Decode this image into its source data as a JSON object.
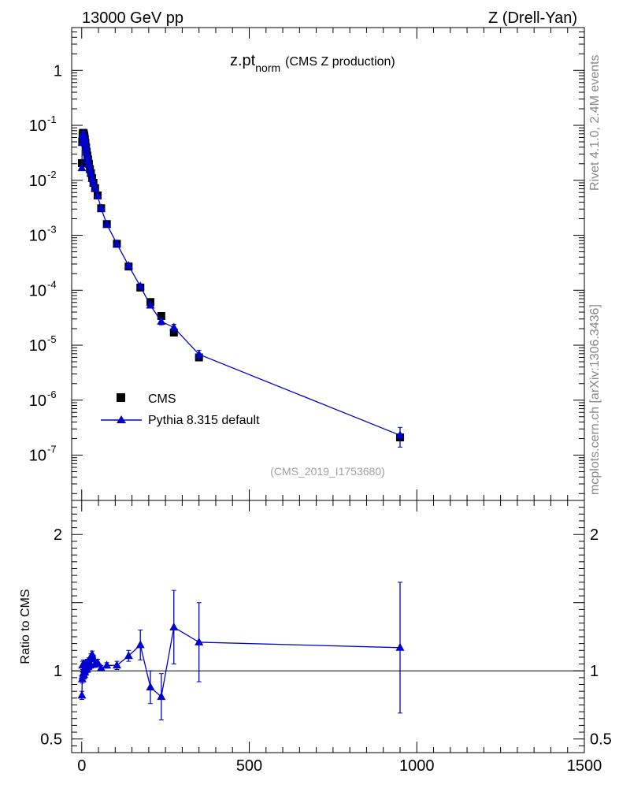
{
  "header": {
    "left_title": "13000 GeV pp",
    "right_title": "Z (Drell-Yan)"
  },
  "side_labels": {
    "rivet": "Rivet 4.1.0,  2.4M events",
    "mcplots": "mcplots.cern.ch [arXiv:1306.3436]"
  },
  "colors": {
    "data": "#000000",
    "mc": "#0000cc",
    "axis": "#000000",
    "watermark": "#a0a0a0"
  },
  "chart_data": [
    {
      "type": "scatter",
      "panel": "main",
      "title": "z.pt",
      "title_subscript": "norm",
      "subtitle": "(CMS Z production)",
      "watermark": "(CMS_2019_I1753680)",
      "xlim": [
        -30,
        1500
      ],
      "yscale": "log",
      "ylim": [
        1.5e-08,
        6
      ],
      "ytick_labels": [
        "10",
        "1"
      ],
      "ytick_decades": [
        0,
        -1,
        -2,
        -3,
        -4,
        -5,
        -6,
        -7
      ],
      "legend_position": "lower-left",
      "series": [
        {
          "name": "CMS",
          "marker": "square",
          "points": [
            {
              "x": 0.5,
              "y": 0.0205
            },
            {
              "x": 1.5,
              "y": 0.051
            },
            {
              "x": 2.5,
              "y": 0.066
            },
            {
              "x": 3.5,
              "y": 0.072
            },
            {
              "x": 4.5,
              "y": 0.073
            },
            {
              "x": 5.5,
              "y": 0.072
            },
            {
              "x": 6.5,
              "y": 0.069
            },
            {
              "x": 7.5,
              "y": 0.065
            },
            {
              "x": 8.5,
              "y": 0.06
            },
            {
              "x": 9.5,
              "y": 0.055
            },
            {
              "x": 11,
              "y": 0.048
            },
            {
              "x": 13,
              "y": 0.04
            },
            {
              "x": 15,
              "y": 0.033
            },
            {
              "x": 17,
              "y": 0.028
            },
            {
              "x": 19,
              "y": 0.024
            },
            {
              "x": 21.5,
              "y": 0.02
            },
            {
              "x": 24.5,
              "y": 0.016
            },
            {
              "x": 27.5,
              "y": 0.0135
            },
            {
              "x": 31,
              "y": 0.011
            },
            {
              "x": 35,
              "y": 0.009
            },
            {
              "x": 40,
              "y": 0.0072
            },
            {
              "x": 47.5,
              "y": 0.0053
            },
            {
              "x": 58,
              "y": 0.0031
            },
            {
              "x": 75,
              "y": 0.0016
            },
            {
              "x": 105,
              "y": 0.0007
            },
            {
              "x": 140,
              "y": 0.00027
            },
            {
              "x": 175,
              "y": 0.000112
            },
            {
              "x": 205,
              "y": 6.1e-05
            },
            {
              "x": 237.5,
              "y": 3.4e-05
            },
            {
              "x": 275,
              "y": 1.7e-05
            },
            {
              "x": 350,
              "y": 6e-06
            },
            {
              "x": 950,
              "y": 2.1e-07
            }
          ]
        },
        {
          "name": "Pythia 8.315 default",
          "marker": "triangle",
          "points": [
            {
              "x": 0.5,
              "y": 0.0168,
              "err": 0.0006
            },
            {
              "x": 1.5,
              "y": 0.048,
              "err": 0.0015
            },
            {
              "x": 2.5,
              "y": 0.063,
              "err": 0.0018
            },
            {
              "x": 3.5,
              "y": 0.068,
              "err": 0.0018
            },
            {
              "x": 4.5,
              "y": 0.069,
              "err": 0.0018
            },
            {
              "x": 5.5,
              "y": 0.071,
              "err": 0.0018
            },
            {
              "x": 6.5,
              "y": 0.067,
              "err": 0.0018
            },
            {
              "x": 7.5,
              "y": 0.062,
              "err": 0.0018
            },
            {
              "x": 8.5,
              "y": 0.058,
              "err": 0.0016
            },
            {
              "x": 9.5,
              "y": 0.052,
              "err": 0.0016
            },
            {
              "x": 11,
              "y": 0.047,
              "err": 0.0012
            },
            {
              "x": 13,
              "y": 0.039,
              "err": 0.001
            },
            {
              "x": 15,
              "y": 0.032,
              "err": 0.0009
            },
            {
              "x": 17,
              "y": 0.027,
              "err": 0.0008
            },
            {
              "x": 19,
              "y": 0.023,
              "err": 0.0007
            },
            {
              "x": 21.5,
              "y": 0.0195,
              "err": 0.0006
            },
            {
              "x": 24.5,
              "y": 0.0158,
              "err": 0.0005
            },
            {
              "x": 27.5,
              "y": 0.0132,
              "err": 0.0004
            },
            {
              "x": 31,
              "y": 0.0108,
              "err": 0.0003
            },
            {
              "x": 35,
              "y": 0.0088,
              "err": 0.0003
            },
            {
              "x": 40,
              "y": 0.0071,
              "err": 0.0002
            },
            {
              "x": 47.5,
              "y": 0.0052,
              "err": 0.00015
            },
            {
              "x": 58,
              "y": 0.0031,
              "err": 0.0001
            },
            {
              "x": 75,
              "y": 0.00158,
              "err": 5e-05
            },
            {
              "x": 105,
              "y": 0.0007,
              "err": 2.5e-05
            },
            {
              "x": 140,
              "y": 0.00028,
              "err": 1.2e-05
            },
            {
              "x": 175,
              "y": 0.000118,
              "err": 7e-06
            },
            {
              "x": 205,
              "y": 5.3e-05,
              "err": 5e-06
            },
            {
              "x": 237.5,
              "y": 2.7e-05,
              "err": 3.5e-06
            },
            {
              "x": 275,
              "y": 2.1e-05,
              "err": 3e-06
            },
            {
              "x": 350,
              "y": 6.8e-06,
              "err": 1.3e-06
            },
            {
              "x": 950,
              "y": 2.3e-07,
              "err": 9e-08
            }
          ]
        }
      ]
    },
    {
      "type": "line",
      "panel": "ratio",
      "ylabel": "Ratio to CMS",
      "xlim": [
        -30,
        1500
      ],
      "ylim": [
        0.4,
        2.25
      ],
      "yticks": [
        0.5,
        1,
        2
      ],
      "ytick_labels": [
        "0.5",
        "1",
        "2"
      ],
      "xticks": [
        0,
        500,
        1000,
        1500
      ],
      "xtick_labels": [
        "0",
        "500",
        "1000",
        "1500"
      ],
      "reference_line": 1,
      "series": [
        {
          "name": "Pythia 8.315 default / CMS",
          "points": [
            {
              "x": 0.5,
              "y": 0.82,
              "err": 0.03
            },
            {
              "x": 1.5,
              "y": 0.94,
              "err": 0.03
            },
            {
              "x": 2.5,
              "y": 1.04,
              "err": 0.03
            },
            {
              "x": 3.5,
              "y": 0.96,
              "err": 0.03
            },
            {
              "x": 4.5,
              "y": 0.98,
              "err": 0.03
            },
            {
              "x": 5.5,
              "y": 1.05,
              "err": 0.03
            },
            {
              "x": 6.5,
              "y": 0.97,
              "err": 0.03
            },
            {
              "x": 7.5,
              "y": 1.01,
              "err": 0.03
            },
            {
              "x": 8.5,
              "y": 1.04,
              "err": 0.03
            },
            {
              "x": 9.5,
              "y": 0.99,
              "err": 0.03
            },
            {
              "x": 11,
              "y": 1.02,
              "err": 0.025
            },
            {
              "x": 13,
              "y": 1.05,
              "err": 0.025
            },
            {
              "x": 15,
              "y": 1.01,
              "err": 0.025
            },
            {
              "x": 17,
              "y": 1.06,
              "err": 0.025
            },
            {
              "x": 19,
              "y": 1.03,
              "err": 0.025
            },
            {
              "x": 21.5,
              "y": 1.07,
              "err": 0.025
            },
            {
              "x": 24.5,
              "y": 1.04,
              "err": 0.025
            },
            {
              "x": 27.5,
              "y": 1.1,
              "err": 0.025
            },
            {
              "x": 31,
              "y": 1.12,
              "err": 0.025
            },
            {
              "x": 35,
              "y": 1.09,
              "err": 0.025
            },
            {
              "x": 40,
              "y": 1.05,
              "err": 0.025
            },
            {
              "x": 47.5,
              "y": 1.06,
              "err": 0.025
            },
            {
              "x": 58,
              "y": 1.02,
              "err": 0.02
            },
            {
              "x": 75,
              "y": 1.04,
              "err": 0.02
            },
            {
              "x": 105,
              "y": 1.04,
              "err": 0.03
            },
            {
              "x": 140,
              "y": 1.11,
              "err": 0.04
            },
            {
              "x": 175,
              "y": 1.19,
              "err": 0.11
            },
            {
              "x": 205,
              "y": 0.88,
              "err": 0.12
            },
            {
              "x": 237.5,
              "y": 0.81,
              "err": 0.17
            },
            {
              "x": 275,
              "y": 1.32,
              "err": 0.27
            },
            {
              "x": 350,
              "y": 1.21,
              "err": 0.29
            },
            {
              "x": 950,
              "y": 1.17,
              "err": 0.48
            }
          ]
        }
      ]
    }
  ]
}
